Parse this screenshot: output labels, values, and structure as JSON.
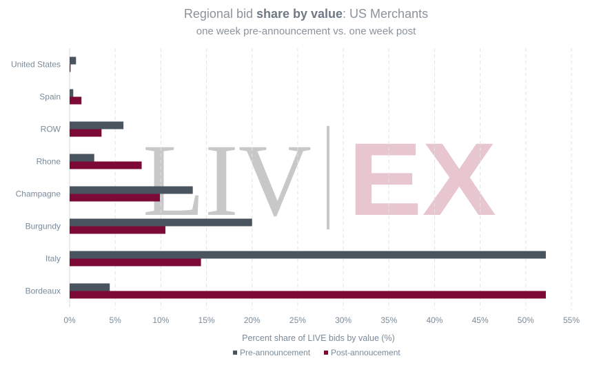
{
  "chart_data": {
    "type": "bar",
    "orientation": "horizontal",
    "title": {
      "prefix": "Regional bid ",
      "bold": "share by value",
      "suffix": ": US Merchants"
    },
    "subtitle": "one week pre-announcement vs. one week post",
    "xlabel": "Percent share of LIVE bids by value (%)",
    "ylabel": "",
    "xlim": [
      0,
      55
    ],
    "x_ticks": [
      "0%",
      "5%",
      "10%",
      "15%",
      "20%",
      "25%",
      "30%",
      "35%",
      "40%",
      "45%",
      "50%",
      "55%"
    ],
    "x_tick_values": [
      0,
      5,
      10,
      15,
      20,
      25,
      30,
      35,
      40,
      45,
      50,
      55
    ],
    "grid": "vertical-dashed",
    "legend_position": "bottom",
    "categories": [
      "United States",
      "Spain",
      "ROW",
      "Rhone",
      "Champagne",
      "Burgundy",
      "Italy",
      "Bordeaux"
    ],
    "series": [
      {
        "name": "Pre-announcement",
        "color": "#4a545e",
        "values": [
          0.7,
          0.4,
          5.9,
          2.7,
          13.5,
          20.0,
          52.2,
          4.4
        ]
      },
      {
        "name": "Post-annoucement",
        "color": "#7d0a36",
        "values": [
          0.1,
          1.3,
          3.5,
          7.9,
          9.9,
          10.5,
          14.4,
          52.2
        ]
      }
    ]
  },
  "watermark": {
    "left": "LIV",
    "right": "EX",
    "left_color": "#c8c8c8",
    "right_color": "#e8c6cf"
  },
  "colors": {
    "text": "#7a8a99",
    "title": "#8a939c",
    "grid": "#e3e3e3"
  }
}
